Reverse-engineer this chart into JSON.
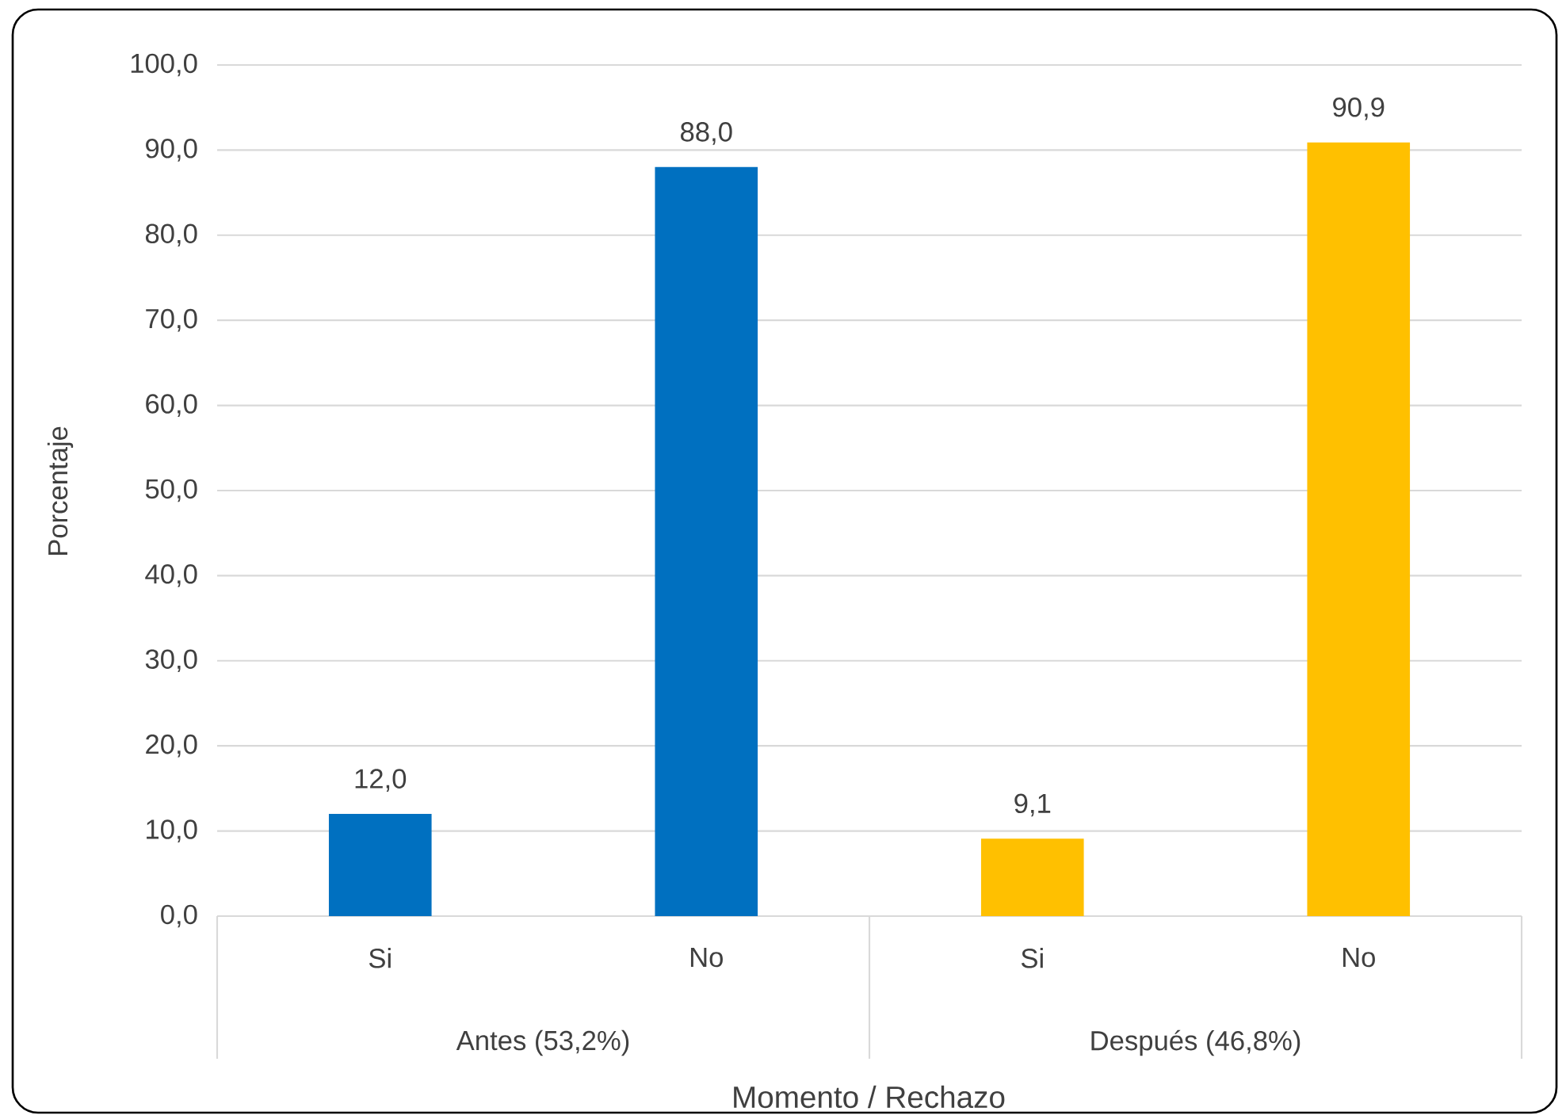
{
  "chart_data": {
    "type": "bar",
    "categories": [
      "Si",
      "No",
      "Si",
      "No"
    ],
    "values": [
      12.0,
      88.0,
      9.1,
      90.9
    ],
    "colors": [
      "#0070c0",
      "#0070c0",
      "#ffc000",
      "#ffc000"
    ],
    "value_labels": [
      "12,0",
      "88,0",
      "9,1",
      "90,9"
    ],
    "annotations": [
      "Antes (53,2%)",
      "Después (46,8%)"
    ],
    "xlabel": "Momento / Rechazo",
    "ylabel": "Porcentaje",
    "ylim": [
      0,
      100
    ],
    "yticks": [
      {
        "value": 0,
        "label": "0,0"
      },
      {
        "value": 10,
        "label": "10,0"
      },
      {
        "value": 20,
        "label": "20,0"
      },
      {
        "value": 30,
        "label": "30,0"
      },
      {
        "value": 40,
        "label": "40,0"
      },
      {
        "value": 50,
        "label": "50,0"
      },
      {
        "value": 60,
        "label": "60,0"
      },
      {
        "value": 70,
        "label": "70,0"
      },
      {
        "value": 80,
        "label": "80,0"
      },
      {
        "value": 90,
        "label": "90,0"
      },
      {
        "value": 100,
        "label": "100,0"
      }
    ],
    "grid": "y"
  }
}
